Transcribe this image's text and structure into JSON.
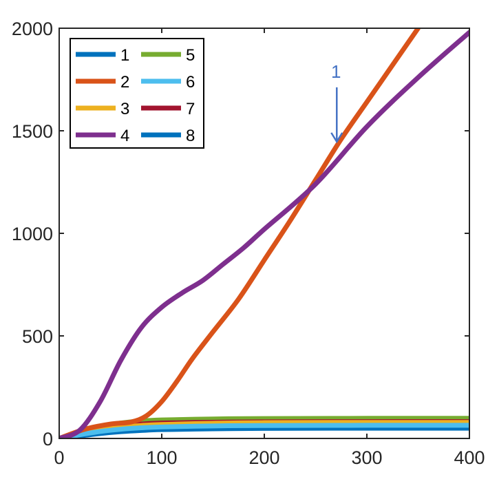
{
  "chart_data": {
    "type": "line",
    "title": "",
    "xlabel": "",
    "ylabel": "",
    "xlim": [
      0,
      400
    ],
    "ylim": [
      0,
      2000
    ],
    "xticks": [
      0,
      100,
      200,
      300,
      400
    ],
    "yticks": [
      0,
      500,
      1000,
      1500,
      2000
    ],
    "grid": false,
    "legend": {
      "placement": "top-left",
      "columns": 2
    },
    "series": [
      {
        "name": "1",
        "color": "#0072BD",
        "x": [
          0,
          20,
          40,
          60,
          80,
          100,
          150,
          200,
          300,
          400
        ],
        "y": [
          0,
          15,
          28,
          38,
          44,
          48,
          52,
          55,
          56,
          56
        ]
      },
      {
        "name": "2",
        "color": "#D95319",
        "x": [
          0,
          25,
          50,
          70,
          85,
          100,
          115,
          130,
          150,
          175,
          200,
          225,
          250,
          275,
          300,
          325,
          350
        ],
        "y": [
          0,
          45,
          70,
          80,
          110,
          180,
          280,
          390,
          520,
          680,
          870,
          1060,
          1260,
          1460,
          1640,
          1820,
          2000
        ]
      },
      {
        "name": "3",
        "color": "#EDB120",
        "x": [
          0,
          20,
          40,
          60,
          80,
          100,
          150,
          200,
          300,
          400
        ],
        "y": [
          0,
          22,
          42,
          55,
          63,
          68,
          74,
          77,
          78,
          78
        ]
      },
      {
        "name": "4",
        "color": "#7E2F8E",
        "x": [
          0,
          20,
          40,
          60,
          80,
          100,
          120,
          140,
          160,
          180,
          200,
          250,
          300,
          350,
          400
        ],
        "y": [
          0,
          40,
          180,
          380,
          540,
          640,
          710,
          770,
          850,
          930,
          1020,
          1240,
          1520,
          1760,
          1980
        ]
      },
      {
        "name": "5",
        "color": "#77AC30",
        "x": [
          0,
          20,
          40,
          60,
          80,
          100,
          150,
          200,
          300,
          400
        ],
        "y": [
          0,
          35,
          60,
          75,
          85,
          90,
          95,
          97,
          98,
          98
        ]
      },
      {
        "name": "6",
        "color": "#4DBEEE",
        "x": [
          0,
          20,
          40,
          60,
          80,
          100,
          150,
          200,
          300,
          400
        ],
        "y": [
          0,
          18,
          34,
          45,
          52,
          56,
          61,
          63,
          64,
          64
        ]
      },
      {
        "name": "7",
        "color": "#A2142F",
        "x": [
          0,
          20,
          40,
          60,
          80,
          100,
          150,
          200,
          300,
          400
        ],
        "y": [
          0,
          25,
          48,
          62,
          70,
          75,
          79,
          81,
          82,
          82
        ]
      },
      {
        "name": "8",
        "color": "#0072BD",
        "x": [
          0,
          20,
          40,
          60,
          80,
          100,
          150,
          200,
          300,
          400
        ],
        "y": [
          0,
          12,
          24,
          33,
          39,
          43,
          47,
          49,
          50,
          50
        ]
      }
    ],
    "annotations": [
      {
        "text": "1",
        "x": 272,
        "y": 1430,
        "arrow": "down",
        "color": "#4472C4"
      }
    ]
  }
}
